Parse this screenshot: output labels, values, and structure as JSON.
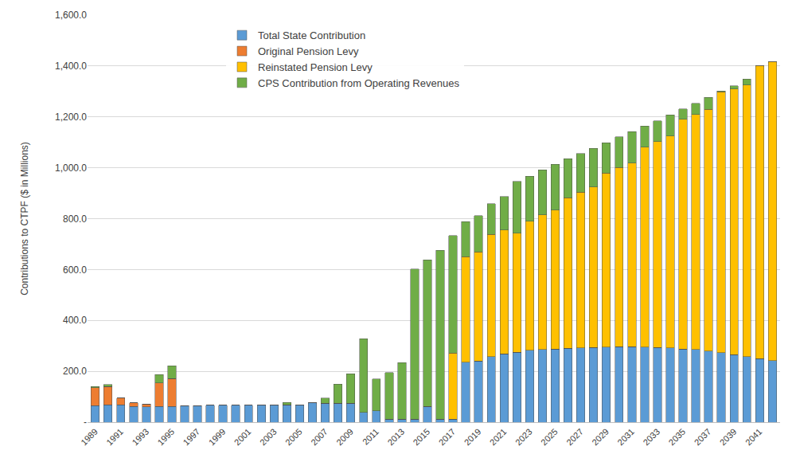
{
  "chart_data": {
    "type": "bar",
    "stacked": true,
    "grid": true,
    "legend": "upper left",
    "y_label": "Contributions to CTPF ($ in Millions)",
    "ylim": [
      0,
      1600
    ],
    "yticks": [
      {
        "value": 0,
        "label": "-"
      },
      {
        "value": 200,
        "label": "200.0"
      },
      {
        "value": 400,
        "label": "400.0"
      },
      {
        "value": 600,
        "label": "600.0"
      },
      {
        "value": 800,
        "label": "800.0"
      },
      {
        "value": 1000,
        "label": "1,000.0"
      },
      {
        "value": 1200,
        "label": "1,200.0"
      },
      {
        "value": 1400,
        "label": "1,400.0"
      },
      {
        "value": 1600,
        "label": "1,600.0"
      }
    ],
    "categories": [
      "1989",
      null,
      "1991",
      null,
      "1993",
      null,
      "1995",
      null,
      "1997",
      null,
      "1999",
      null,
      "2001",
      null,
      "2003",
      null,
      "2005",
      null,
      "2007",
      null,
      "2009",
      null,
      "2011",
      null,
      "2013",
      null,
      "2015",
      null,
      "2017",
      null,
      "2019",
      null,
      "2021",
      null,
      "2023",
      null,
      "2025",
      null,
      "2027",
      null,
      "2029",
      null,
      "2031",
      null,
      "2033",
      null,
      "2035",
      null,
      "2037",
      null,
      "2039",
      null,
      "2041",
      null
    ],
    "series": [
      {
        "name": "Total State Contribution",
        "color": "#5B9BD5",
        "values": [
          65,
          68,
          68,
          62,
          60,
          62,
          62,
          65,
          65,
          66,
          67,
          67,
          67,
          67,
          67,
          68,
          68,
          76,
          75,
          75,
          75,
          38,
          45,
          12,
          12,
          12,
          62,
          12,
          12,
          235,
          240,
          258,
          268,
          275,
          283,
          285,
          288,
          290,
          292,
          294,
          295,
          296,
          296,
          295,
          293,
          292,
          288,
          285,
          279,
          273,
          266,
          258,
          250,
          242
        ]
      },
      {
        "name": "Original Pension Levy",
        "color": "#ED7D31",
        "values": [
          70,
          72,
          27,
          14,
          12,
          92,
          110,
          0,
          0,
          0,
          0,
          0,
          0,
          0,
          0,
          0,
          0,
          0,
          0,
          0,
          0,
          0,
          0,
          0,
          0,
          0,
          0,
          0,
          0,
          0,
          0,
          0,
          0,
          0,
          0,
          0,
          0,
          0,
          0,
          0,
          0,
          0,
          0,
          0,
          0,
          0,
          0,
          0,
          0,
          0,
          0,
          0,
          0,
          0
        ]
      },
      {
        "name": "Reinstated Pension Levy",
        "color": "#FFC000",
        "values": [
          0,
          0,
          0,
          0,
          0,
          0,
          0,
          0,
          0,
          0,
          0,
          0,
          0,
          0,
          0,
          0,
          0,
          0,
          0,
          0,
          0,
          0,
          0,
          0,
          0,
          0,
          0,
          0,
          260,
          415,
          430,
          480,
          487,
          468,
          507,
          530,
          545,
          592,
          612,
          630,
          685,
          705,
          723,
          786,
          810,
          833,
          903,
          925,
          950,
          1025,
          1044,
          1068,
          1152,
          1175
        ]
      },
      {
        "name": "CPS Contribution from Operating Revenues",
        "color": "#70AD47",
        "values": [
          5,
          8,
          0,
          0,
          0,
          33,
          50,
          0,
          0,
          0,
          0,
          0,
          0,
          0,
          0,
          10,
          0,
          0,
          20,
          75,
          115,
          290,
          125,
          183,
          222,
          590,
          576,
          664,
          462,
          138,
          142,
          120,
          132,
          203,
          177,
          177,
          180,
          153,
          152,
          153,
          119,
          120,
          123,
          83,
          82,
          83,
          40,
          44,
          47,
          4,
          12,
          22,
          0,
          0
        ]
      }
    ]
  }
}
